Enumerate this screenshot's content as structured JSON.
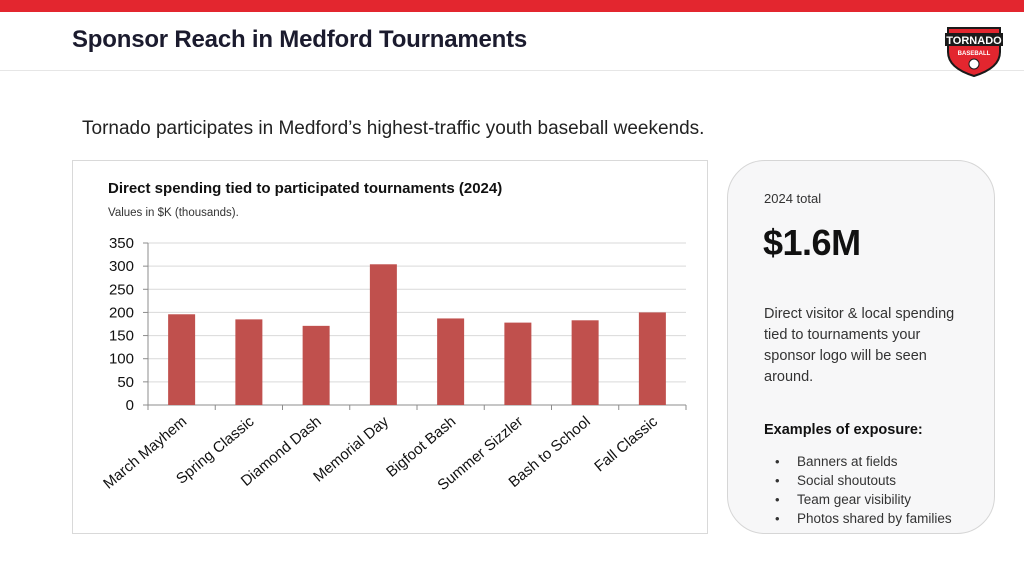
{
  "page": {
    "title": "Sponsor Reach in Medford Tournaments",
    "subtitle": "Tornado participates in Medford’s highest-traffic youth baseball weekends."
  },
  "logo": {
    "line1": "TORNADO",
    "line2": "BASEBALL",
    "colors": {
      "red": "#e3262f",
      "dark": "#1a1a1a"
    }
  },
  "chart_data": {
    "type": "bar",
    "title": "Direct spending tied to participated tournaments (2024)",
    "note": "Values in $K (thousands).",
    "categories": [
      "March Mayhem",
      "Spring Classic",
      "Diamond Dash",
      "Memorial Day",
      "Bigfoot Bash",
      "Summer Sizzler",
      "Bash to School",
      "Fall Classic"
    ],
    "values": [
      196,
      185,
      171,
      304,
      187,
      178,
      183,
      200
    ],
    "ylim": [
      0,
      350
    ],
    "yticks": [
      0,
      50,
      100,
      150,
      200,
      250,
      300,
      350
    ],
    "grid": true,
    "legend": "none",
    "bar_color": "#c0504d",
    "xlabel": "",
    "ylabel": ""
  },
  "summary": {
    "label": "2024 total",
    "value": "$1.6M",
    "description": "Direct visitor & local spending tied to tournaments your sponsor logo will be seen around.",
    "examples_heading": "Examples of exposure:",
    "examples": [
      "Banners at fields",
      "Social shoutouts",
      "Team gear visibility",
      "Photos shared by families"
    ]
  }
}
